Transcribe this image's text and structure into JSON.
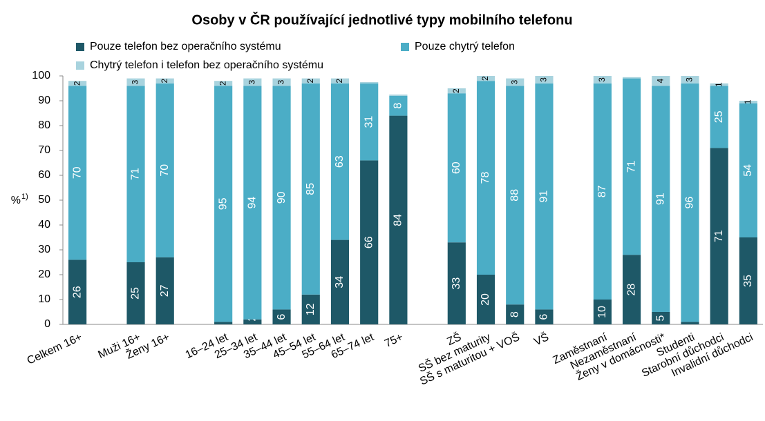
{
  "chart_data": {
    "type": "stacked_bar",
    "title": "Osoby v ČR používající jednotlivé typy mobilního telefonu",
    "ylabel": "%",
    "ylabel_sup": "1)",
    "categories": [
      "Celkem 16+",
      null,
      "Muži 16+",
      "Ženy 16+",
      null,
      "16–24 let",
      "25–34 let",
      "35–44 let",
      "45–54 let",
      "55–64 let",
      "65–74 let",
      "75+",
      null,
      "ZŠ",
      "SŠ bez maturity",
      "SŠ s maturitou + VOŠ",
      "VŠ",
      null,
      "Zaměstnaní",
      "Nezaměstnaní",
      "Ženy v domácnosti*",
      "Studenti",
      "Starobní důchodci",
      "Invalidní důchodci"
    ],
    "series": [
      {
        "name": "Pouze telefon bez operačního systému",
        "color": "#1e5867",
        "values": [
          26,
          null,
          25,
          27,
          null,
          1,
          2,
          6,
          12,
          34,
          66,
          84,
          null,
          33,
          20,
          8,
          6,
          null,
          10,
          28,
          5,
          1,
          71,
          35
        ]
      },
      {
        "name": "Pouze chytrý telefon",
        "color": "#4badc6",
        "values": [
          70,
          null,
          71,
          70,
          null,
          95,
          94,
          90,
          85,
          63,
          31,
          8,
          null,
          60,
          78,
          88,
          91,
          null,
          87,
          71,
          91,
          96,
          25,
          54
        ]
      },
      {
        "name": "Chytrý telefon i telefon bez operačního systému",
        "color": "#a8d3de",
        "values": [
          2,
          null,
          3,
          2,
          null,
          2,
          3,
          3,
          2,
          2,
          0.5,
          0.5,
          null,
          2,
          2,
          3,
          3,
          null,
          3,
          0.5,
          4,
          3,
          1,
          1
        ]
      }
    ],
    "ylim": [
      0,
      100
    ],
    "yticks": [
      0,
      10,
      20,
      30,
      40,
      50,
      60,
      70,
      80,
      90,
      100
    ],
    "grid": false
  }
}
